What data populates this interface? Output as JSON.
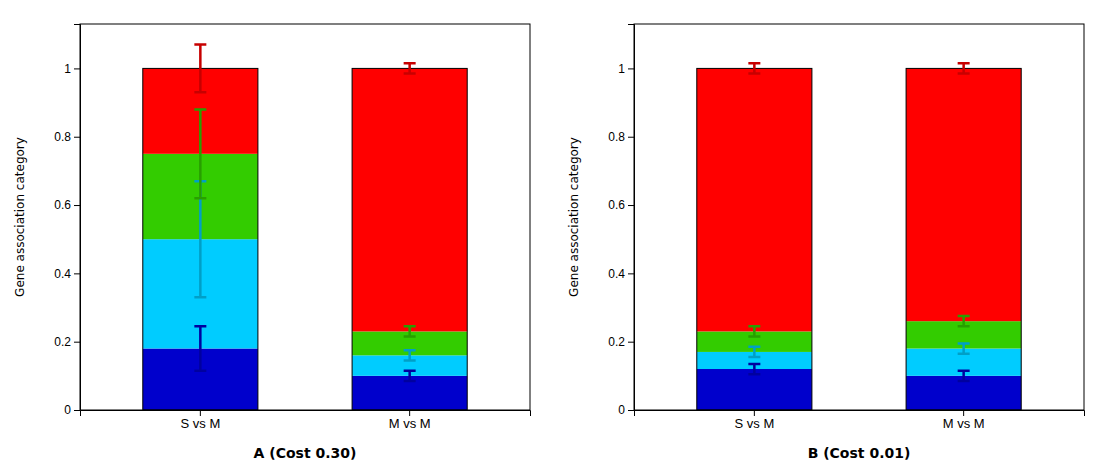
{
  "chart_data": [
    {
      "type": "bar",
      "stacked": true,
      "grid": false,
      "xlabel": "A (Cost 0.30)",
      "ylabel": "Gene association category",
      "categories": [
        "S vs M",
        "M vs M"
      ],
      "series": [
        {
          "color": "#0000CC",
          "values": [
            0.18,
            0.1
          ],
          "errors": [
            0.065,
            0.015
          ]
        },
        {
          "color": "#00CCFF",
          "values": [
            0.32,
            0.06
          ],
          "errors": [
            0.17,
            0.015
          ]
        },
        {
          "color": "#33CC00",
          "values": [
            0.25,
            0.07
          ],
          "errors": [
            0.13,
            0.015
          ]
        },
        {
          "color": "#FF0000",
          "values": [
            0.25,
            0.77
          ],
          "errors": [
            0.07,
            0.015
          ]
        }
      ],
      "ylim": [
        0,
        1.13
      ],
      "yticks": [
        0,
        0.2,
        0.4,
        0.6,
        0.8,
        1
      ]
    },
    {
      "type": "bar",
      "stacked": true,
      "grid": false,
      "xlabel": "B (Cost 0.01)",
      "ylabel": "Gene association category",
      "categories": [
        "S vs M",
        "M vs M"
      ],
      "series": [
        {
          "color": "#0000CC",
          "values": [
            0.12,
            0.1
          ],
          "errors": [
            0.015,
            0.015
          ]
        },
        {
          "color": "#00CCFF",
          "values": [
            0.05,
            0.08
          ],
          "errors": [
            0.015,
            0.015
          ]
        },
        {
          "color": "#33CC00",
          "values": [
            0.06,
            0.08
          ],
          "errors": [
            0.015,
            0.015
          ]
        },
        {
          "color": "#FF0000",
          "values": [
            0.77,
            0.74
          ],
          "errors": [
            0.015,
            0.015
          ]
        }
      ],
      "ylim": [
        0,
        1.13
      ],
      "yticks": [
        0,
        0.2,
        0.4,
        0.6,
        0.8,
        1
      ]
    }
  ]
}
